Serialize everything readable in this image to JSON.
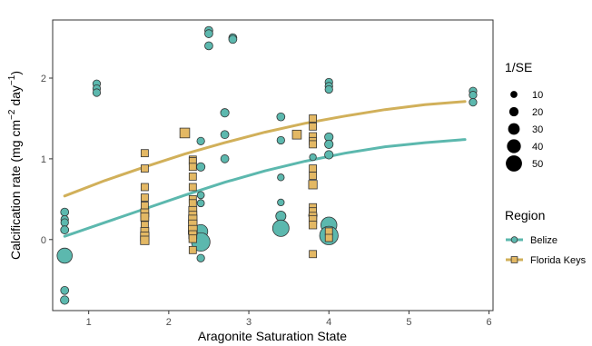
{
  "chart_data": {
    "type": "scatter",
    "xlabel": "Aragonite Saturation State",
    "ylabel_parts": {
      "prefix": "Calcification rate (mg cm",
      "sup1": "−2",
      "mid": " day",
      "sup2": "−1",
      "suffix": ")"
    },
    "xlim": [
      0.55,
      6.05
    ],
    "ylim": [
      -0.88,
      2.72
    ],
    "x_ticks": [
      {
        "v": 1,
        "label": "1"
      },
      {
        "v": 2,
        "label": "2"
      },
      {
        "v": 3,
        "label": "3"
      },
      {
        "v": 4,
        "label": "4"
      },
      {
        "v": 5,
        "label": "5"
      },
      {
        "v": 6,
        "label": "6"
      }
    ],
    "y_ticks": [
      {
        "v": 0,
        "label": "0"
      },
      {
        "v": 1,
        "label": "1"
      },
      {
        "v": 2,
        "label": "2"
      }
    ],
    "grid": true,
    "legend_position": "right",
    "size_legend": {
      "title": "1/SE",
      "entries": [
        {
          "value": 10,
          "label": "10"
        },
        {
          "value": 20,
          "label": "20"
        },
        {
          "value": 30,
          "label": "30"
        },
        {
          "value": 40,
          "label": "40"
        },
        {
          "value": 50,
          "label": "50"
        }
      ]
    },
    "series": [
      {
        "name": "Belize",
        "marker": "circle",
        "fill": "#5cb8ae",
        "line_color": "#5cb8ae",
        "points": [
          {
            "x": 0.7,
            "y": 0.34,
            "se": 8
          },
          {
            "x": 0.7,
            "y": 0.25,
            "se": 7
          },
          {
            "x": 0.7,
            "y": 0.21,
            "se": 7
          },
          {
            "x": 0.7,
            "y": 0.12,
            "se": 8
          },
          {
            "x": 0.7,
            "y": -0.2,
            "se": 25
          },
          {
            "x": 0.7,
            "y": -0.63,
            "se": 8
          },
          {
            "x": 0.7,
            "y": -0.75,
            "se": 9
          },
          {
            "x": 1.1,
            "y": 1.93,
            "se": 7
          },
          {
            "x": 1.1,
            "y": 1.87,
            "se": 7
          },
          {
            "x": 1.1,
            "y": 1.82,
            "se": 7
          },
          {
            "x": 2.4,
            "y": 1.22,
            "se": 7
          },
          {
            "x": 2.4,
            "y": 0.9,
            "se": 9
          },
          {
            "x": 2.4,
            "y": 0.55,
            "se": 6
          },
          {
            "x": 2.4,
            "y": 0.45,
            "se": 6
          },
          {
            "x": 2.4,
            "y": 0.1,
            "se": 22
          },
          {
            "x": 2.4,
            "y": -0.03,
            "se": 33
          },
          {
            "x": 2.4,
            "y": -0.23,
            "se": 7
          },
          {
            "x": 2.5,
            "y": 2.59,
            "se": 8
          },
          {
            "x": 2.5,
            "y": 2.55,
            "se": 8
          },
          {
            "x": 2.5,
            "y": 2.4,
            "se": 8
          },
          {
            "x": 2.7,
            "y": 1.57,
            "se": 9
          },
          {
            "x": 2.7,
            "y": 1.3,
            "se": 8
          },
          {
            "x": 2.7,
            "y": 1.0,
            "se": 8
          },
          {
            "x": 2.8,
            "y": 2.5,
            "se": 8
          },
          {
            "x": 2.8,
            "y": 2.48,
            "se": 8
          },
          {
            "x": 3.4,
            "y": 1.52,
            "se": 8
          },
          {
            "x": 3.4,
            "y": 1.23,
            "se": 7
          },
          {
            "x": 3.4,
            "y": 0.77,
            "se": 5
          },
          {
            "x": 3.4,
            "y": 0.46,
            "se": 5
          },
          {
            "x": 3.4,
            "y": 0.29,
            "se": 13
          },
          {
            "x": 3.4,
            "y": 0.14,
            "se": 28
          },
          {
            "x": 3.8,
            "y": 1.02,
            "se": 5
          },
          {
            "x": 3.8,
            "y": 0.3,
            "se": 9
          },
          {
            "x": 4.0,
            "y": 1.95,
            "se": 7
          },
          {
            "x": 4.0,
            "y": 1.9,
            "se": 7
          },
          {
            "x": 4.0,
            "y": 1.86,
            "se": 7
          },
          {
            "x": 4.0,
            "y": 1.27,
            "se": 9
          },
          {
            "x": 4.0,
            "y": 1.18,
            "se": 9
          },
          {
            "x": 4.0,
            "y": 1.05,
            "se": 9
          },
          {
            "x": 4.0,
            "y": 0.18,
            "se": 27
          },
          {
            "x": 4.0,
            "y": 0.05,
            "se": 33
          },
          {
            "x": 5.8,
            "y": 1.84,
            "se": 7
          },
          {
            "x": 5.8,
            "y": 1.79,
            "se": 7
          },
          {
            "x": 5.8,
            "y": 1.7,
            "se": 7
          }
        ],
        "fit": [
          {
            "x": 0.7,
            "y": 0.04
          },
          {
            "x": 1.2,
            "y": 0.21
          },
          {
            "x": 1.7,
            "y": 0.38
          },
          {
            "x": 2.2,
            "y": 0.55
          },
          {
            "x": 2.7,
            "y": 0.71
          },
          {
            "x": 3.2,
            "y": 0.85
          },
          {
            "x": 3.7,
            "y": 0.97
          },
          {
            "x": 4.2,
            "y": 1.07
          },
          {
            "x": 4.7,
            "y": 1.15
          },
          {
            "x": 5.2,
            "y": 1.2
          },
          {
            "x": 5.7,
            "y": 1.24
          }
        ]
      },
      {
        "name": "Florida Keys",
        "marker": "square",
        "fill": "#e3b864",
        "line_color": "#d1b05a",
        "points": [
          {
            "x": 1.7,
            "y": 1.07,
            "se": 6
          },
          {
            "x": 1.7,
            "y": 0.88,
            "se": 6
          },
          {
            "x": 1.7,
            "y": 0.65,
            "se": 6
          },
          {
            "x": 1.7,
            "y": 0.52,
            "se": 6
          },
          {
            "x": 1.7,
            "y": 0.42,
            "se": 6
          },
          {
            "x": 1.7,
            "y": 0.33,
            "se": 8
          },
          {
            "x": 1.7,
            "y": 0.28,
            "se": 8
          },
          {
            "x": 1.7,
            "y": 0.18,
            "se": 6
          },
          {
            "x": 1.7,
            "y": 0.1,
            "se": 8
          },
          {
            "x": 1.7,
            "y": 0.04,
            "se": 9
          },
          {
            "x": 1.7,
            "y": -0.01,
            "se": 9
          },
          {
            "x": 2.2,
            "y": 1.32,
            "se": 12
          },
          {
            "x": 2.3,
            "y": 0.99,
            "se": 6
          },
          {
            "x": 2.3,
            "y": 0.97,
            "se": 6
          },
          {
            "x": 2.3,
            "y": 0.9,
            "se": 6
          },
          {
            "x": 2.3,
            "y": 0.78,
            "se": 6
          },
          {
            "x": 2.3,
            "y": 0.65,
            "se": 6
          },
          {
            "x": 2.3,
            "y": 0.5,
            "se": 6
          },
          {
            "x": 2.3,
            "y": 0.45,
            "se": 6
          },
          {
            "x": 2.3,
            "y": 0.36,
            "se": 8
          },
          {
            "x": 2.3,
            "y": 0.3,
            "se": 8
          },
          {
            "x": 2.3,
            "y": 0.25,
            "se": 9
          },
          {
            "x": 2.3,
            "y": 0.19,
            "se": 9
          },
          {
            "x": 2.3,
            "y": 0.12,
            "se": 10
          },
          {
            "x": 2.3,
            "y": 0.06,
            "se": 8
          },
          {
            "x": 2.3,
            "y": 0.01,
            "se": 7
          },
          {
            "x": 2.3,
            "y": -0.13,
            "se": 6
          },
          {
            "x": 3.6,
            "y": 1.3,
            "se": 10
          },
          {
            "x": 3.8,
            "y": 1.5,
            "se": 6
          },
          {
            "x": 3.8,
            "y": 1.4,
            "se": 6
          },
          {
            "x": 3.8,
            "y": 1.28,
            "se": 6
          },
          {
            "x": 3.8,
            "y": 1.22,
            "se": 6
          },
          {
            "x": 3.8,
            "y": 1.18,
            "se": 6
          },
          {
            "x": 3.8,
            "y": 0.88,
            "se": 6
          },
          {
            "x": 3.8,
            "y": 0.79,
            "se": 6
          },
          {
            "x": 3.8,
            "y": 0.68,
            "se": 9
          },
          {
            "x": 3.8,
            "y": 0.4,
            "se": 6
          },
          {
            "x": 3.8,
            "y": 0.35,
            "se": 6
          },
          {
            "x": 3.8,
            "y": 0.29,
            "se": 7
          },
          {
            "x": 3.8,
            "y": 0.25,
            "se": 7
          },
          {
            "x": 3.8,
            "y": 0.18,
            "se": 7
          },
          {
            "x": 3.8,
            "y": -0.18,
            "se": 6
          },
          {
            "x": 4.0,
            "y": 0.1,
            "se": 6
          },
          {
            "x": 4.0,
            "y": 0.02,
            "se": 6
          }
        ],
        "fit": [
          {
            "x": 0.7,
            "y": 0.54
          },
          {
            "x": 1.2,
            "y": 0.73
          },
          {
            "x": 1.7,
            "y": 0.9
          },
          {
            "x": 2.2,
            "y": 1.06
          },
          {
            "x": 2.7,
            "y": 1.2
          },
          {
            "x": 3.2,
            "y": 1.33
          },
          {
            "x": 3.7,
            "y": 1.44
          },
          {
            "x": 4.2,
            "y": 1.53
          },
          {
            "x": 4.7,
            "y": 1.61
          },
          {
            "x": 5.2,
            "y": 1.67
          },
          {
            "x": 5.7,
            "y": 1.71
          }
        ]
      }
    ],
    "color_legend": {
      "title": "Region",
      "entries": [
        {
          "label": "Belize",
          "color": "#5cb8ae",
          "marker": "circle"
        },
        {
          "label": "Florida Keys",
          "color": "#d1b05a",
          "marker": "square"
        }
      ]
    }
  }
}
